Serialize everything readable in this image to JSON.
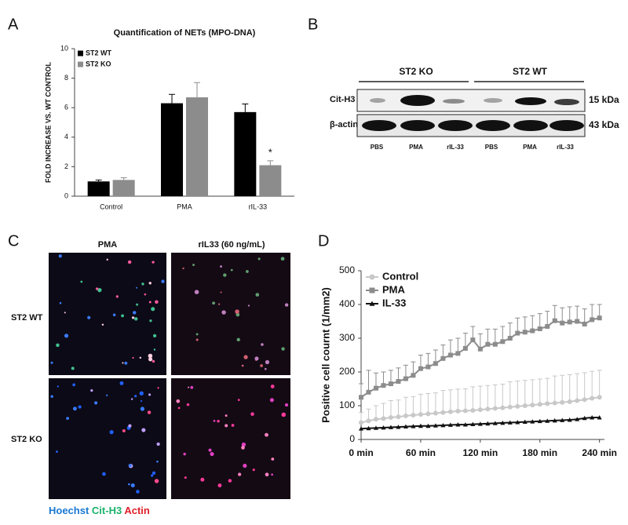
{
  "panel_labels": [
    "A",
    "B",
    "C",
    "D"
  ],
  "chart_data": [
    {
      "type": "bar",
      "title": "Quantification of NETs (MPO-DNA)",
      "ylabel": "FOLD INCREASE VS. WT CONTROL",
      "categories": [
        "Control",
        "PMA",
        "rIL-33"
      ],
      "series": [
        {
          "name": "ST2 WT",
          "color": "#000000",
          "values": [
            1.0,
            6.3,
            5.7
          ],
          "errors": [
            0.1,
            0.6,
            0.55
          ]
        },
        {
          "name": "ST2 KO",
          "color": "#8c8c8c",
          "values": [
            1.1,
            6.7,
            2.1
          ],
          "errors": [
            0.15,
            1.0,
            0.3
          ]
        }
      ],
      "ylim": [
        0,
        10
      ],
      "yticks": [
        0,
        2,
        4,
        6,
        8,
        10
      ],
      "legend": "upper left",
      "annotations": [
        "*"
      ]
    },
    {
      "type": "line",
      "ylabel": "Positive cell cournt (1/mm2)",
      "x": [
        0,
        7.5,
        15,
        22.5,
        30,
        37.5,
        45,
        52.5,
        60,
        67.5,
        75,
        82.5,
        90,
        97.5,
        105,
        112.5,
        120,
        127.5,
        135,
        142.5,
        150,
        157.5,
        165,
        172.5,
        180,
        187.5,
        195,
        202.5,
        210,
        217.5,
        225,
        232.5,
        240
      ],
      "series": [
        {
          "name": "Control",
          "color": "#c8c8c8",
          "marker": "circle",
          "values": [
            50,
            55,
            60,
            62,
            65,
            67,
            70,
            72,
            74,
            76,
            78,
            80,
            82,
            84,
            85,
            86,
            88,
            90,
            92,
            94,
            96,
            98,
            100,
            102,
            104,
            106,
            108,
            110,
            112,
            115,
            118,
            122,
            125
          ],
          "errors": [
            30,
            35,
            40,
            45,
            50,
            50,
            55,
            55,
            60,
            60,
            60,
            65,
            65,
            65,
            65,
            70,
            70,
            70,
            70,
            70,
            75,
            75,
            75,
            75,
            75,
            75,
            80,
            80,
            80,
            80,
            80,
            80,
            80
          ]
        },
        {
          "name": "PMA",
          "color": "#8c8c8c",
          "marker": "square",
          "values": [
            125,
            140,
            152,
            160,
            165,
            172,
            180,
            190,
            210,
            215,
            225,
            240,
            250,
            255,
            270,
            295,
            268,
            282,
            282,
            290,
            300,
            315,
            318,
            322,
            328,
            335,
            352,
            345,
            348,
            350,
            342,
            355,
            360
          ],
          "errors": [
            40,
            65,
            45,
            40,
            40,
            40,
            40,
            40,
            40,
            40,
            40,
            40,
            45,
            45,
            45,
            40,
            45,
            45,
            45,
            45,
            45,
            45,
            45,
            45,
            45,
            45,
            45,
            45,
            45,
            45,
            45,
            45,
            40
          ]
        },
        {
          "name": "IL-33",
          "color": "#111111",
          "marker": "triangle",
          "values": [
            32,
            33,
            34,
            35,
            36,
            37,
            38,
            39,
            40,
            40,
            41,
            42,
            43,
            44,
            44,
            45,
            46,
            47,
            48,
            49,
            50,
            51,
            52,
            53,
            54,
            55,
            56,
            57,
            58,
            60,
            63,
            65,
            65
          ]
        }
      ],
      "xlim": [
        0,
        245
      ],
      "xticks": [
        {
          "value": 0,
          "label": "0 min"
        },
        {
          "value": 60,
          "label": "60 min"
        },
        {
          "value": 120,
          "label": "120 min"
        },
        {
          "value": 180,
          "label": "180 min"
        },
        {
          "value": 240,
          "label": "240 min"
        }
      ],
      "ylim": [
        0,
        500
      ],
      "yticks": [
        0,
        100,
        200,
        300,
        400,
        500
      ],
      "legend": "upper left"
    }
  ],
  "blot": {
    "groups": [
      "ST2 KO",
      "ST2 WT"
    ],
    "rows": [
      "Cit-H3",
      "β-actin"
    ],
    "sizes": [
      "15 kDa",
      "43 kDa"
    ],
    "lanes": [
      "PBS",
      "PMA",
      "rIL-33",
      "PBS",
      "PMA",
      "rIL-33"
    ]
  },
  "micrographs": {
    "columns": [
      "PMA",
      "rIL33 (60 ng/mL)"
    ],
    "rows": [
      "ST2 WT",
      "ST2 KO"
    ],
    "stains": [
      "Hoechst",
      "Cit-H3",
      "Actin"
    ]
  }
}
